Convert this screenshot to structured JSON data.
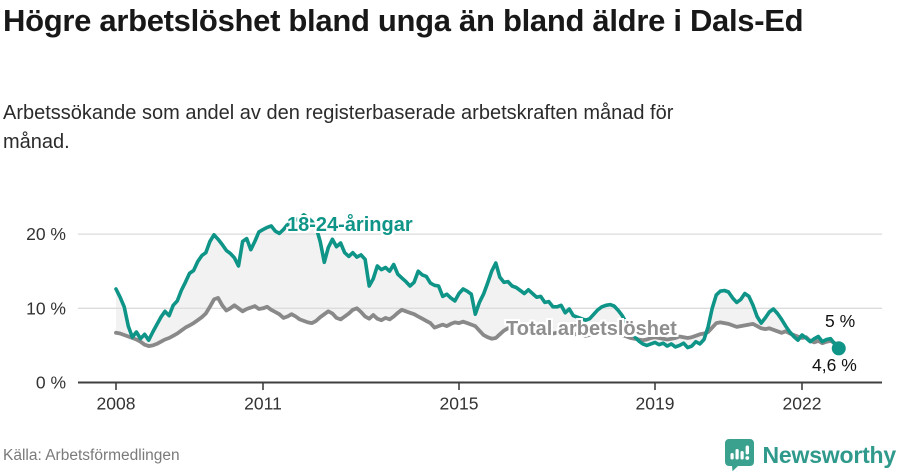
{
  "header": {
    "title": "Högre arbetslöshet bland unga än bland äldre i Dals-Ed",
    "subtitle": "Arbetssökande som andel av den registerbaserade arbetskraften månad för månad."
  },
  "chart_data": {
    "type": "line",
    "title": "Högre arbetslöshet bland unga än bland äldre i Dals-Ed",
    "xlabel": "",
    "ylabel": "Arbetssökande som andel av den registerbaserade arbetskraften",
    "x_unit": "month",
    "x_start": "2008-01",
    "x_end": "2022-10",
    "ylim": [
      0,
      24.5
    ],
    "grid": "horizontal",
    "legend_position": "inline-labels",
    "x_ticks": [
      {
        "year": 2008,
        "label": "2008"
      },
      {
        "year": 2011,
        "label": "2011"
      },
      {
        "year": 2015,
        "label": "2015"
      },
      {
        "year": 2019,
        "label": "2019"
      },
      {
        "year": 2022,
        "label": "2022"
      }
    ],
    "y_ticks": [
      {
        "value": 20,
        "label": "20 %"
      },
      {
        "value": 10,
        "label": "10 %"
      },
      {
        "value": 0,
        "label": "0 %"
      }
    ],
    "series": [
      {
        "name": "18-24-åringar",
        "color": "#0f9488",
        "end_label": "4,6 %",
        "end_value": 4.6,
        "values": [
          12.6,
          11.5,
          10.2,
          7.6,
          6.1,
          6.8,
          5.9,
          6.5,
          5.7,
          6.8,
          7.8,
          8.8,
          9.6,
          9.0,
          10.4,
          11.0,
          12.4,
          13.5,
          14.7,
          15.1,
          16.3,
          17.1,
          17.5,
          19.0,
          19.9,
          19.3,
          18.6,
          17.8,
          17.4,
          16.8,
          15.7,
          19.0,
          19.4,
          17.9,
          19.0,
          20.3,
          20.6,
          20.9,
          21.1,
          20.4,
          20.1,
          20.6,
          21.3,
          21.6,
          21.9,
          22.1,
          22.6,
          22.2,
          21.7,
          20.9,
          19.0,
          16.2,
          18.2,
          19.3,
          18.3,
          18.8,
          17.5,
          17.0,
          17.5,
          16.9,
          17.2,
          16.6,
          13.0,
          14.0,
          15.7,
          15.2,
          15.5,
          15.0,
          15.9,
          14.6,
          14.1,
          13.6,
          13.0,
          13.5,
          15.0,
          14.5,
          14.3,
          13.4,
          13.1,
          13.0,
          11.6,
          11.9,
          11.4,
          11.0,
          12.0,
          12.6,
          12.3,
          11.9,
          9.2,
          10.8,
          11.9,
          13.4,
          15.0,
          16.1,
          14.2,
          13.5,
          13.6,
          13.0,
          12.8,
          12.4,
          12.0,
          12.5,
          12.0,
          11.5,
          11.6,
          10.8,
          10.9,
          10.2,
          10.2,
          10.4,
          9.4,
          9.9,
          9.0,
          8.8,
          8.6,
          8.4,
          8.6,
          9.2,
          9.8,
          10.2,
          10.4,
          10.5,
          10.3,
          9.7,
          9.0,
          8.0,
          7.0,
          6.2,
          5.6,
          5.2,
          5.0,
          5.2,
          5.4,
          5.1,
          5.3,
          4.9,
          5.2,
          4.8,
          5.0,
          5.3,
          4.7,
          4.9,
          5.5,
          5.2,
          5.8,
          7.5,
          10.0,
          11.8,
          12.3,
          12.4,
          12.2,
          11.4,
          10.8,
          11.2,
          12.0,
          11.6,
          10.4,
          8.9,
          8.0,
          8.7,
          9.5,
          9.9,
          9.3,
          8.5,
          7.6,
          6.8,
          6.2,
          5.7,
          6.4,
          6.0,
          5.5,
          5.9,
          6.2,
          5.5,
          5.8,
          5.9,
          5.2,
          4.6
        ]
      },
      {
        "name": "Total arbetslöshet",
        "color": "#898989",
        "end_label": "5 %",
        "end_value": 5.0,
        "values": [
          6.7,
          6.6,
          6.4,
          6.2,
          6.0,
          5.8,
          5.5,
          5.1,
          4.9,
          5.0,
          5.2,
          5.5,
          5.8,
          6.0,
          6.3,
          6.6,
          7.0,
          7.4,
          7.7,
          8.0,
          8.4,
          8.8,
          9.3,
          10.2,
          11.2,
          11.4,
          10.4,
          9.7,
          10.0,
          10.4,
          10.0,
          9.6,
          9.9,
          10.1,
          10.3,
          9.9,
          10.0,
          10.2,
          9.8,
          9.5,
          9.2,
          8.7,
          8.9,
          9.2,
          8.9,
          8.5,
          8.3,
          8.1,
          8.0,
          8.3,
          8.8,
          9.2,
          9.6,
          9.3,
          8.7,
          8.5,
          8.9,
          9.3,
          9.8,
          10.0,
          9.5,
          8.9,
          8.6,
          9.1,
          8.6,
          8.4,
          8.7,
          8.5,
          8.9,
          9.4,
          9.8,
          9.6,
          9.4,
          9.2,
          8.9,
          8.6,
          8.3,
          8.0,
          7.4,
          7.6,
          7.8,
          7.6,
          7.9,
          8.1,
          8.0,
          8.2,
          8.0,
          7.8,
          7.6,
          7.0,
          6.4,
          6.1,
          5.9,
          6.0,
          6.5,
          7.0,
          7.3,
          7.4,
          7.2,
          7.0,
          6.9,
          7.1,
          7.0,
          6.8,
          6.9,
          6.7,
          6.8,
          6.6,
          6.7,
          6.8,
          6.6,
          6.5,
          6.4,
          6.6,
          6.5,
          6.3,
          6.4,
          6.5,
          6.7,
          6.8,
          6.9,
          7.0,
          6.8,
          6.6,
          6.4,
          6.2,
          6.0,
          5.9,
          5.8,
          5.7,
          5.8,
          6.0,
          6.1,
          6.0,
          5.9,
          5.8,
          5.9,
          6.0,
          6.2,
          6.1,
          6.0,
          6.1,
          6.3,
          6.5,
          6.6,
          6.8,
          7.4,
          8.0,
          8.1,
          8.0,
          7.9,
          7.7,
          7.5,
          7.6,
          7.7,
          7.8,
          7.9,
          7.6,
          7.3,
          7.2,
          7.3,
          7.1,
          6.9,
          6.7,
          6.9,
          6.6,
          6.4,
          6.2,
          6.0,
          6.1,
          5.6,
          5.4,
          5.6,
          5.3,
          5.5,
          5.6,
          5.3,
          5.0
        ]
      }
    ]
  },
  "colors": {
    "accent_teal": "#0f9488",
    "line_gray": "#898989",
    "gridline": "#dcdcdc",
    "axis": "#3f3f3f",
    "tick_text": "#333333",
    "fill_between": "#f2f2f2",
    "brand_teal": "#3aa18f"
  },
  "footer": {
    "source": "Källa: Arbetsförmedlingen",
    "brand": "Newsworthy"
  }
}
